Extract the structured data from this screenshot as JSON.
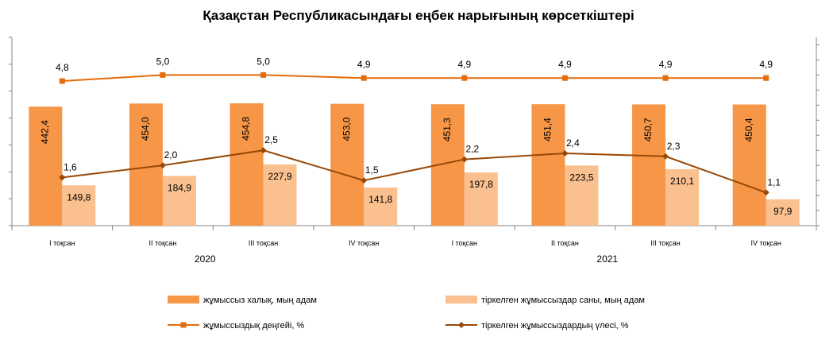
{
  "chart_data": {
    "type": "bar",
    "title": "Қазақстан Республикасындағы  еңбек нарығының  көрсеткіштері",
    "categories": [
      "I тоқсан",
      "II тоқсан",
      "III тоқсан",
      "IV тоқсан",
      "I тоқсан",
      "II тоқсан",
      "III тоқсан",
      "IV тоқсан"
    ],
    "year_groups": [
      {
        "label": "2020",
        "span": [
          0,
          3
        ]
      },
      {
        "label": "2021",
        "span": [
          4,
          7
        ]
      }
    ],
    "series": [
      {
        "name": "жұмыссыз халық, мың адам",
        "kind": "bar",
        "axis": "left",
        "color": "#F79646",
        "values": [
          442.4,
          454.0,
          454.8,
          453.0,
          451.3,
          451.4,
          450.7,
          450.4
        ],
        "labels": [
          "442,4",
          "454,0",
          "454,8",
          "453,0",
          "451,3",
          "451,4",
          "450,7",
          "450,4"
        ]
      },
      {
        "name": "тіркелген жұмыссыздар саны, мың адам",
        "kind": "bar",
        "axis": "left",
        "color": "#FAC090",
        "values": [
          149.8,
          184.9,
          227.9,
          141.8,
          197.8,
          223.5,
          210.1,
          97.9
        ],
        "labels": [
          "149,8",
          "184,9",
          "227,9",
          "141,8",
          "197,8",
          "223,5",
          "210,1",
          "97,9"
        ]
      },
      {
        "name": "жұмыссыздық деңгейі, %",
        "kind": "line",
        "axis": "right",
        "marker": "square",
        "color": "#E46C0A",
        "values": [
          4.8,
          5.0,
          5.0,
          4.9,
          4.9,
          4.9,
          4.9,
          4.9
        ],
        "labels": [
          "4,8",
          "5,0",
          "5,0",
          "4,9",
          "4,9",
          "4,9",
          "4,9",
          "4,9"
        ]
      },
      {
        "name": "тіркелген жұмыссыздардың үлесі, %",
        "kind": "line",
        "axis": "right",
        "marker": "diamond",
        "color": "#984807",
        "values": [
          1.6,
          2.0,
          2.5,
          1.5,
          2.2,
          2.4,
          2.3,
          1.1
        ],
        "labels": [
          "1,6",
          "2,0",
          "2,5",
          "1,5",
          "2,2",
          "2,4",
          "2,3",
          "1,1"
        ]
      }
    ],
    "ylim_left": [
      0,
      700
    ],
    "ylim_right": [
      0,
      6.25
    ],
    "legend_position": "bottom",
    "grid": false
  }
}
